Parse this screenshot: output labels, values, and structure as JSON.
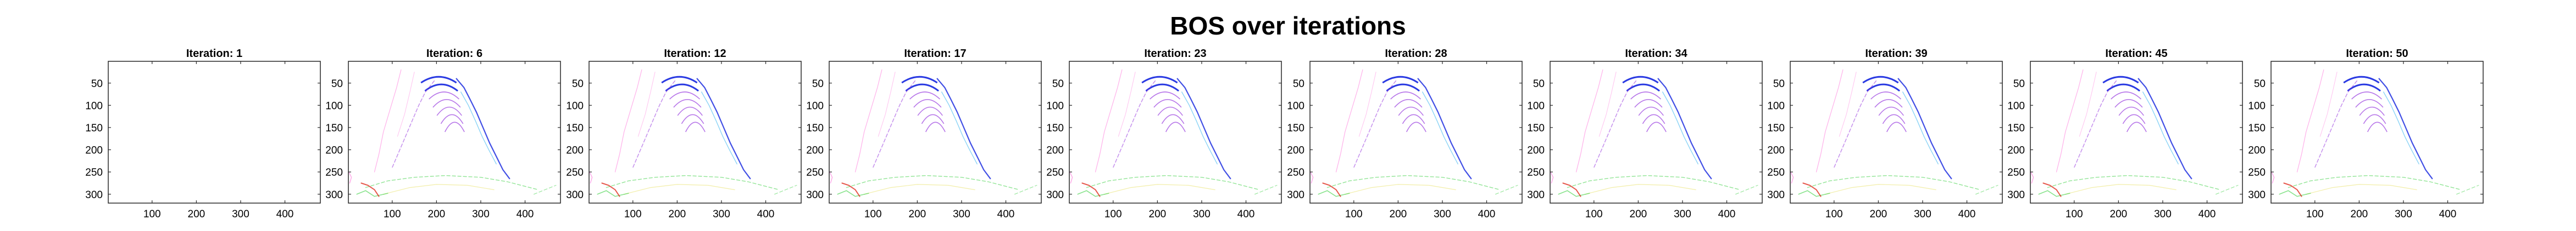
{
  "title": "BOS over iterations",
  "chart_data": {
    "type": "heatmap",
    "title": "BOS over iterations",
    "xlim": [
      1,
      480
    ],
    "ylim": [
      1,
      320
    ],
    "y_reversed": true,
    "x_ticks": [
      100,
      200,
      300,
      400
    ],
    "y_ticks": [
      50,
      100,
      150,
      200,
      250,
      300
    ],
    "grid": false,
    "colors": {
      "axes": "#262626",
      "background": "#ffffff",
      "blue": "#2030e0",
      "purple": "#9a3fe0",
      "magenta": "#ff4fd0",
      "green": "#38d040",
      "yellow": "#e8e060",
      "cyan": "#40b8f0"
    },
    "panels": [
      {
        "title": "Iteration: 1",
        "iteration": 1,
        "show_image": false
      },
      {
        "title": "Iteration: 6",
        "iteration": 6,
        "show_image": true
      },
      {
        "title": "Iteration: 12",
        "iteration": 12,
        "show_image": true
      },
      {
        "title": "Iteration: 17",
        "iteration": 17,
        "show_image": true
      },
      {
        "title": "Iteration: 23",
        "iteration": 23,
        "show_image": true
      },
      {
        "title": "Iteration: 28",
        "iteration": 28,
        "show_image": true
      },
      {
        "title": "Iteration: 34",
        "iteration": 34,
        "show_image": true
      },
      {
        "title": "Iteration: 39",
        "iteration": 39,
        "show_image": true
      },
      {
        "title": "Iteration: 45",
        "iteration": 45,
        "show_image": true
      },
      {
        "title": "Iteration: 50",
        "iteration": 50,
        "show_image": true
      }
    ]
  }
}
